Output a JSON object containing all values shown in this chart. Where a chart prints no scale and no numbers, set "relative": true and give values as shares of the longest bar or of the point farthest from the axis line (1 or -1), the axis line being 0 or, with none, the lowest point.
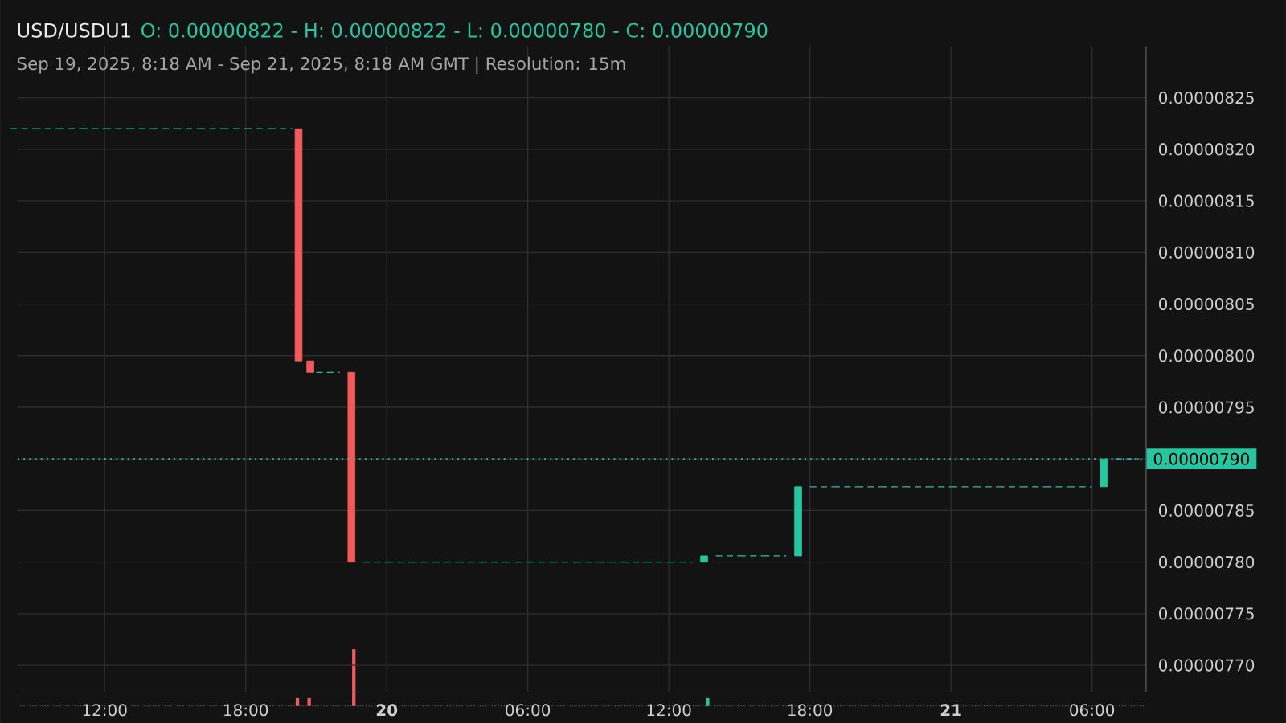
{
  "chart_data": [
    {
      "type": "candlestick",
      "title": "USD/USDU1",
      "subtitle": "Sep 19, 2025, 8:18 AM - Sep 21, 2025, 8:18 AM GMT   |   Resolution: 15m",
      "annotations": [
        "O: 0.00000822 - H: 0.00000822 - L: 0.00000780 - C: 0.00000790"
      ],
      "x": [
        "2025-09-19T08:30",
        "2025-09-19T09:30",
        "2025-09-19T10:30",
        "2025-09-19T11:30",
        "2025-09-19T12:30",
        "2025-09-19T13:30",
        "2025-09-19T14:30",
        "2025-09-19T15:30",
        "2025-09-19T16:30",
        "2025-09-19T17:30",
        "2025-09-19T18:30",
        "2025-09-19T19:30",
        "2025-09-19T20:15",
        "2025-09-19T20:45",
        "2025-09-19T21:30",
        "2025-09-19T22:30",
        "2025-09-19T23:30",
        "2025-09-20T00:30",
        "2025-09-20T01:30",
        "2025-09-20T02:30",
        "2025-09-20T03:30",
        "2025-09-20T04:30",
        "2025-09-20T05:30",
        "2025-09-20T06:30",
        "2025-09-20T07:30",
        "2025-09-20T08:30",
        "2025-09-20T09:30",
        "2025-09-20T10:30",
        "2025-09-20T11:30",
        "2025-09-20T12:30",
        "2025-09-20T13:30",
        "2025-09-20T14:30",
        "2025-09-20T15:30",
        "2025-09-20T16:30",
        "2025-09-20T17:30",
        "2025-09-20T18:30",
        "2025-09-20T19:30",
        "2025-09-20T20:30",
        "2025-09-20T21:30",
        "2025-09-20T22:30",
        "2025-09-20T23:30",
        "2025-09-21T00:30",
        "2025-09-21T01:30",
        "2025-09-21T02:30",
        "2025-09-21T03:30",
        "2025-09-21T04:30",
        "2025-09-21T05:30",
        "2025-09-21T06:30",
        "2025-09-21T07:30"
      ],
      "ohlc": [
        [
          8.22e-06,
          8.22e-06,
          8.22e-06,
          8.22e-06
        ],
        [
          8.22e-06,
          8.22e-06,
          8.22e-06,
          8.22e-06
        ],
        [
          8.22e-06,
          8.22e-06,
          8.22e-06,
          8.22e-06
        ],
        [
          8.22e-06,
          8.22e-06,
          8.22e-06,
          8.22e-06
        ],
        [
          8.22e-06,
          8.22e-06,
          8.22e-06,
          8.22e-06
        ],
        [
          8.22e-06,
          8.22e-06,
          8.22e-06,
          8.22e-06
        ],
        [
          8.22e-06,
          8.22e-06,
          8.22e-06,
          8.22e-06
        ],
        [
          8.22e-06,
          8.22e-06,
          8.22e-06,
          8.22e-06
        ],
        [
          8.22e-06,
          8.22e-06,
          8.22e-06,
          8.22e-06
        ],
        [
          8.22e-06,
          8.22e-06,
          8.22e-06,
          8.22e-06
        ],
        [
          8.22e-06,
          8.22e-06,
          8.22e-06,
          8.22e-06
        ],
        [
          8.22e-06,
          8.22e-06,
          8.22e-06,
          8.22e-06
        ],
        [
          8.22e-06,
          8.22e-06,
          7.995e-06,
          7.995e-06
        ],
        [
          7.995e-06,
          7.995e-06,
          7.984e-06,
          7.984e-06
        ],
        [
          7.984e-06,
          7.984e-06,
          7.984e-06,
          7.984e-06
        ],
        [
          7.984e-06,
          7.984e-06,
          7.8e-06,
          7.8e-06
        ],
        [
          7.8e-06,
          7.8e-06,
          7.8e-06,
          7.8e-06
        ],
        [
          7.8e-06,
          7.8e-06,
          7.8e-06,
          7.8e-06
        ],
        [
          7.8e-06,
          7.8e-06,
          7.8e-06,
          7.8e-06
        ],
        [
          7.8e-06,
          7.8e-06,
          7.8e-06,
          7.8e-06
        ],
        [
          7.8e-06,
          7.8e-06,
          7.8e-06,
          7.8e-06
        ],
        [
          7.8e-06,
          7.8e-06,
          7.8e-06,
          7.8e-06
        ],
        [
          7.8e-06,
          7.8e-06,
          7.8e-06,
          7.8e-06
        ],
        [
          7.8e-06,
          7.8e-06,
          7.8e-06,
          7.8e-06
        ],
        [
          7.8e-06,
          7.8e-06,
          7.8e-06,
          7.8e-06
        ],
        [
          7.8e-06,
          7.8e-06,
          7.8e-06,
          7.8e-06
        ],
        [
          7.8e-06,
          7.8e-06,
          7.8e-06,
          7.8e-06
        ],
        [
          7.8e-06,
          7.8e-06,
          7.8e-06,
          7.8e-06
        ],
        [
          7.8e-06,
          7.8e-06,
          7.8e-06,
          7.8e-06
        ],
        [
          7.8e-06,
          7.8e-06,
          7.8e-06,
          7.8e-06
        ],
        [
          7.8e-06,
          7.806e-06,
          7.8e-06,
          7.806e-06
        ],
        [
          7.806e-06,
          7.806e-06,
          7.806e-06,
          7.806e-06
        ],
        [
          7.806e-06,
          7.806e-06,
          7.806e-06,
          7.806e-06
        ],
        [
          7.806e-06,
          7.806e-06,
          7.806e-06,
          7.806e-06
        ],
        [
          7.806e-06,
          7.873e-06,
          7.806e-06,
          7.873e-06
        ],
        [
          7.873e-06,
          7.873e-06,
          7.873e-06,
          7.873e-06
        ],
        [
          7.873e-06,
          7.873e-06,
          7.873e-06,
          7.873e-06
        ],
        [
          7.873e-06,
          7.873e-06,
          7.873e-06,
          7.873e-06
        ],
        [
          7.873e-06,
          7.873e-06,
          7.873e-06,
          7.873e-06
        ],
        [
          7.873e-06,
          7.873e-06,
          7.873e-06,
          7.873e-06
        ],
        [
          7.873e-06,
          7.873e-06,
          7.873e-06,
          7.873e-06
        ],
        [
          7.873e-06,
          7.873e-06,
          7.873e-06,
          7.873e-06
        ],
        [
          7.873e-06,
          7.873e-06,
          7.873e-06,
          7.873e-06
        ],
        [
          7.873e-06,
          7.873e-06,
          7.873e-06,
          7.873e-06
        ],
        [
          7.873e-06,
          7.873e-06,
          7.873e-06,
          7.873e-06
        ],
        [
          7.873e-06,
          7.873e-06,
          7.873e-06,
          7.873e-06
        ],
        [
          7.873e-06,
          7.873e-06,
          7.873e-06,
          7.873e-06
        ],
        [
          7.873e-06,
          7.9e-06,
          7.873e-06,
          7.9e-06
        ],
        [
          7.9e-06,
          7.9e-06,
          7.9e-06,
          7.9e-06
        ]
      ],
      "xlim": [
        "2025-09-19T08:18",
        "2025-09-21T08:18"
      ],
      "ylim": [
        7.674e-06,
        8.3e-06
      ],
      "xticks": [
        {
          "value": "2025-09-19T12:00",
          "label": "12:00"
        },
        {
          "value": "2025-09-19T18:00",
          "label": "18:00"
        },
        {
          "value": "2025-09-20T00:00",
          "label": "**20**"
        },
        {
          "value": "2025-09-20T06:00",
          "label": "06:00"
        },
        {
          "value": "2025-09-20T12:00",
          "label": "12:00"
        },
        {
          "value": "2025-09-20T18:00",
          "label": "18:00"
        },
        {
          "value": "2025-09-21T00:00",
          "label": "**21**"
        },
        {
          "value": "2025-09-21T06:00",
          "label": "06:00"
        }
      ],
      "yticks": [
        {
          "value": 7.7e-06,
          "label": "0.00000770"
        },
        {
          "value": 7.75e-06,
          "label": "0.00000775"
        },
        {
          "value": 7.8e-06,
          "label": "0.00000780"
        },
        {
          "value": 7.85e-06,
          "label": "0.00000785"
        },
        {
          "value": 7.9e-06,
          "label": null
        },
        {
          "value": 7.95e-06,
          "label": "0.00000795"
        },
        {
          "value": 8e-06,
          "label": "0.00000800"
        },
        {
          "value": 8.05e-06,
          "label": "0.00000805"
        },
        {
          "value": 8.1e-06,
          "label": "0.00000810"
        },
        {
          "value": 8.15e-06,
          "label": "0.00000815"
        },
        {
          "value": 8.2e-06,
          "label": "0.00000820"
        },
        {
          "value": 8.25e-06,
          "label": "0.00000825"
        }
      ],
      "grid": true,
      "ref_lines": [
        {
          "axis": "y",
          "value": 7.9e-06,
          "label": "0.00000790",
          "color": "#26c6a0",
          "line_style": "dotted"
        }
      ]
    },
    {
      "type": "bar",
      "relative": true,
      "x": [
        "2025-09-19T20:12",
        "2025-09-19T20:42",
        "2025-09-19T22:36",
        "2025-09-20T13:39"
      ],
      "values": [
        0.14,
        0.14,
        1,
        0.14
      ],
      "colors": [
        "#f05a5a",
        "#f05a5a",
        "#f05a5a",
        "#26c6a0"
      ],
      "xlim": [
        "2025-09-19T08:18",
        "2025-09-21T08:18"
      ],
      "tick_labels": false
    }
  ]
}
